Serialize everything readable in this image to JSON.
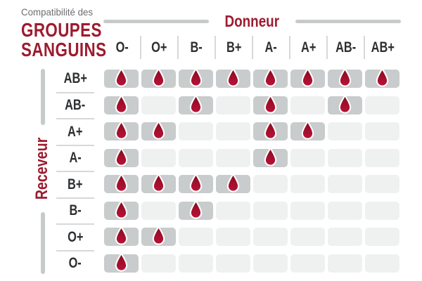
{
  "title": {
    "eyebrow": "Compatibilité des",
    "main_line1": "GROUPES",
    "main_line2": "SANGUINS"
  },
  "chart_data": {
    "type": "heatmap",
    "title": "Compatibilité des groupes sanguins",
    "xlabel": "Donneur",
    "ylabel": "Receveur",
    "columns": [
      "O-",
      "O+",
      "B-",
      "B+",
      "A-",
      "A+",
      "AB-",
      "AB+"
    ],
    "rows": [
      "AB+",
      "AB-",
      "A+",
      "A-",
      "B+",
      "B-",
      "O+",
      "O-"
    ],
    "matrix": [
      [
        1,
        1,
        1,
        1,
        1,
        1,
        1,
        1
      ],
      [
        1,
        0,
        1,
        0,
        1,
        0,
        1,
        0
      ],
      [
        1,
        1,
        0,
        0,
        1,
        1,
        0,
        0
      ],
      [
        1,
        0,
        0,
        0,
        1,
        0,
        0,
        0
      ],
      [
        1,
        1,
        1,
        1,
        0,
        0,
        0,
        0
      ],
      [
        1,
        0,
        1,
        0,
        0,
        0,
        0,
        0
      ],
      [
        1,
        1,
        0,
        0,
        0,
        0,
        0,
        0
      ],
      [
        1,
        0,
        0,
        0,
        0,
        0,
        0,
        0
      ]
    ],
    "cell_value_meaning": {
      "1": "compatible (blood-drop-icon shown)",
      "0": "not compatible (empty cell)"
    },
    "legend_position": "none",
    "grid": "off"
  },
  "icons": {
    "compatible_cell": "blood-drop-icon"
  },
  "colors": {
    "brand_red": "#9d1b2f",
    "drop_red_top": "#7e0d20",
    "drop_red_mid": "#a30e2b",
    "drop_red_bottom": "#b61338",
    "cell_filled": "#c9cccc",
    "cell_empty": "#eff1f1",
    "line_gray": "#c7cacb",
    "separator_gray": "#d6d8d9",
    "label_dark": "#2d2f31",
    "eyebrow_gray": "#6d6e71"
  }
}
